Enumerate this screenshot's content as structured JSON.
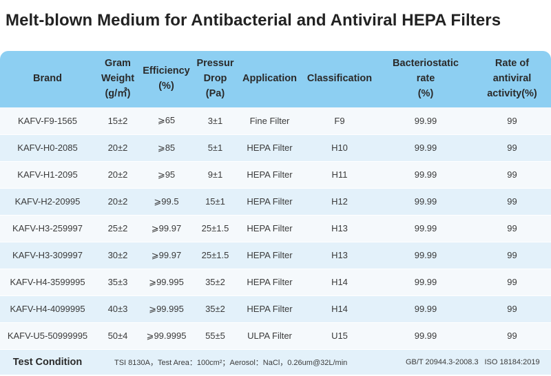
{
  "title": "Melt-blown Medium for Antibacterial and Antiviral HEPA Filters",
  "table": {
    "headers": {
      "brand": "Brand",
      "gram_line1": "Gram",
      "gram_line2": "Weight",
      "gram_line3": "(g/㎡)",
      "eff_line1": "Efficiency",
      "eff_line2": "(%)",
      "pres_line1": "Pressur",
      "pres_line2": "Drop",
      "pres_line3": "(Pa)",
      "application": "Application",
      "classification": "Classification",
      "bact_line1": "Bacteriostatic",
      "bact_line2": "rate",
      "bact_line3": "(%)",
      "rate_line1": "Rate of",
      "rate_line2": "antiviral",
      "rate_line3": "activity(%)"
    },
    "rows": [
      {
        "brand": "KAFV-F9-1565",
        "gram": "15±2",
        "efficiency": "⩾65",
        "pressure": "3±1",
        "application": "Fine Filter",
        "classification": "F9",
        "bacteriostatic": "99.99",
        "antiviral": "99"
      },
      {
        "brand": "KAFV-H0-2085",
        "gram": "20±2",
        "efficiency": "⩾85",
        "pressure": "5±1",
        "application": "HEPA Filter",
        "classification": "H10",
        "bacteriostatic": "99.99",
        "antiviral": "99"
      },
      {
        "brand": "KAFV-H1-2095",
        "gram": "20±2",
        "efficiency": "⩾95",
        "pressure": "9±1",
        "application": "HEPA Filter",
        "classification": "H11",
        "bacteriostatic": "99.99",
        "antiviral": "99"
      },
      {
        "brand": "KAFV-H2-20995",
        "gram": "20±2",
        "efficiency": "⩾99.5",
        "pressure": "15±1",
        "application": "HEPA Filter",
        "classification": "H12",
        "bacteriostatic": "99.99",
        "antiviral": "99"
      },
      {
        "brand": "KAFV-H3-259997",
        "gram": "25±2",
        "efficiency": "⩾99.97",
        "pressure": "25±1.5",
        "application": "HEPA Filter",
        "classification": "H13",
        "bacteriostatic": "99.99",
        "antiviral": "99"
      },
      {
        "brand": "KAFV-H3-309997",
        "gram": "30±2",
        "efficiency": "⩾99.97",
        "pressure": "25±1.5",
        "application": "HEPA Filter",
        "classification": "H13",
        "bacteriostatic": "99.99",
        "antiviral": "99"
      },
      {
        "brand": "KAFV-H4-3599995",
        "gram": "35±3",
        "efficiency": "⩾99.995",
        "pressure": "35±2",
        "application": "HEPA Filter",
        "classification": "H14",
        "bacteriostatic": "99.99",
        "antiviral": "99"
      },
      {
        "brand": "KAFV-H4-4099995",
        "gram": "40±3",
        "efficiency": "⩾99.995",
        "pressure": "35±2",
        "application": "HEPA Filter",
        "classification": "H14",
        "bacteriostatic": "99.99",
        "antiviral": "99"
      },
      {
        "brand": "KAFV-U5-50999995",
        "gram": "50±4",
        "efficiency": "⩾99.9995",
        "pressure": "55±5",
        "application": "ULPA Filter",
        "classification": "U15",
        "bacteriostatic": "99.99",
        "antiviral": "99"
      }
    ],
    "footer": {
      "label": "Test Condition",
      "main": "TSI 8130A，Test Area：100cm²；Aerosol：NaCl，0.26um@32L/min",
      "standard": "GB/T 20944.3-2008.3",
      "iso": "ISO 18184:2019"
    }
  },
  "colors": {
    "header_bg": "#8dcff2",
    "row_light": "#f5f9fc",
    "row_tint": "#e3f1fa"
  }
}
